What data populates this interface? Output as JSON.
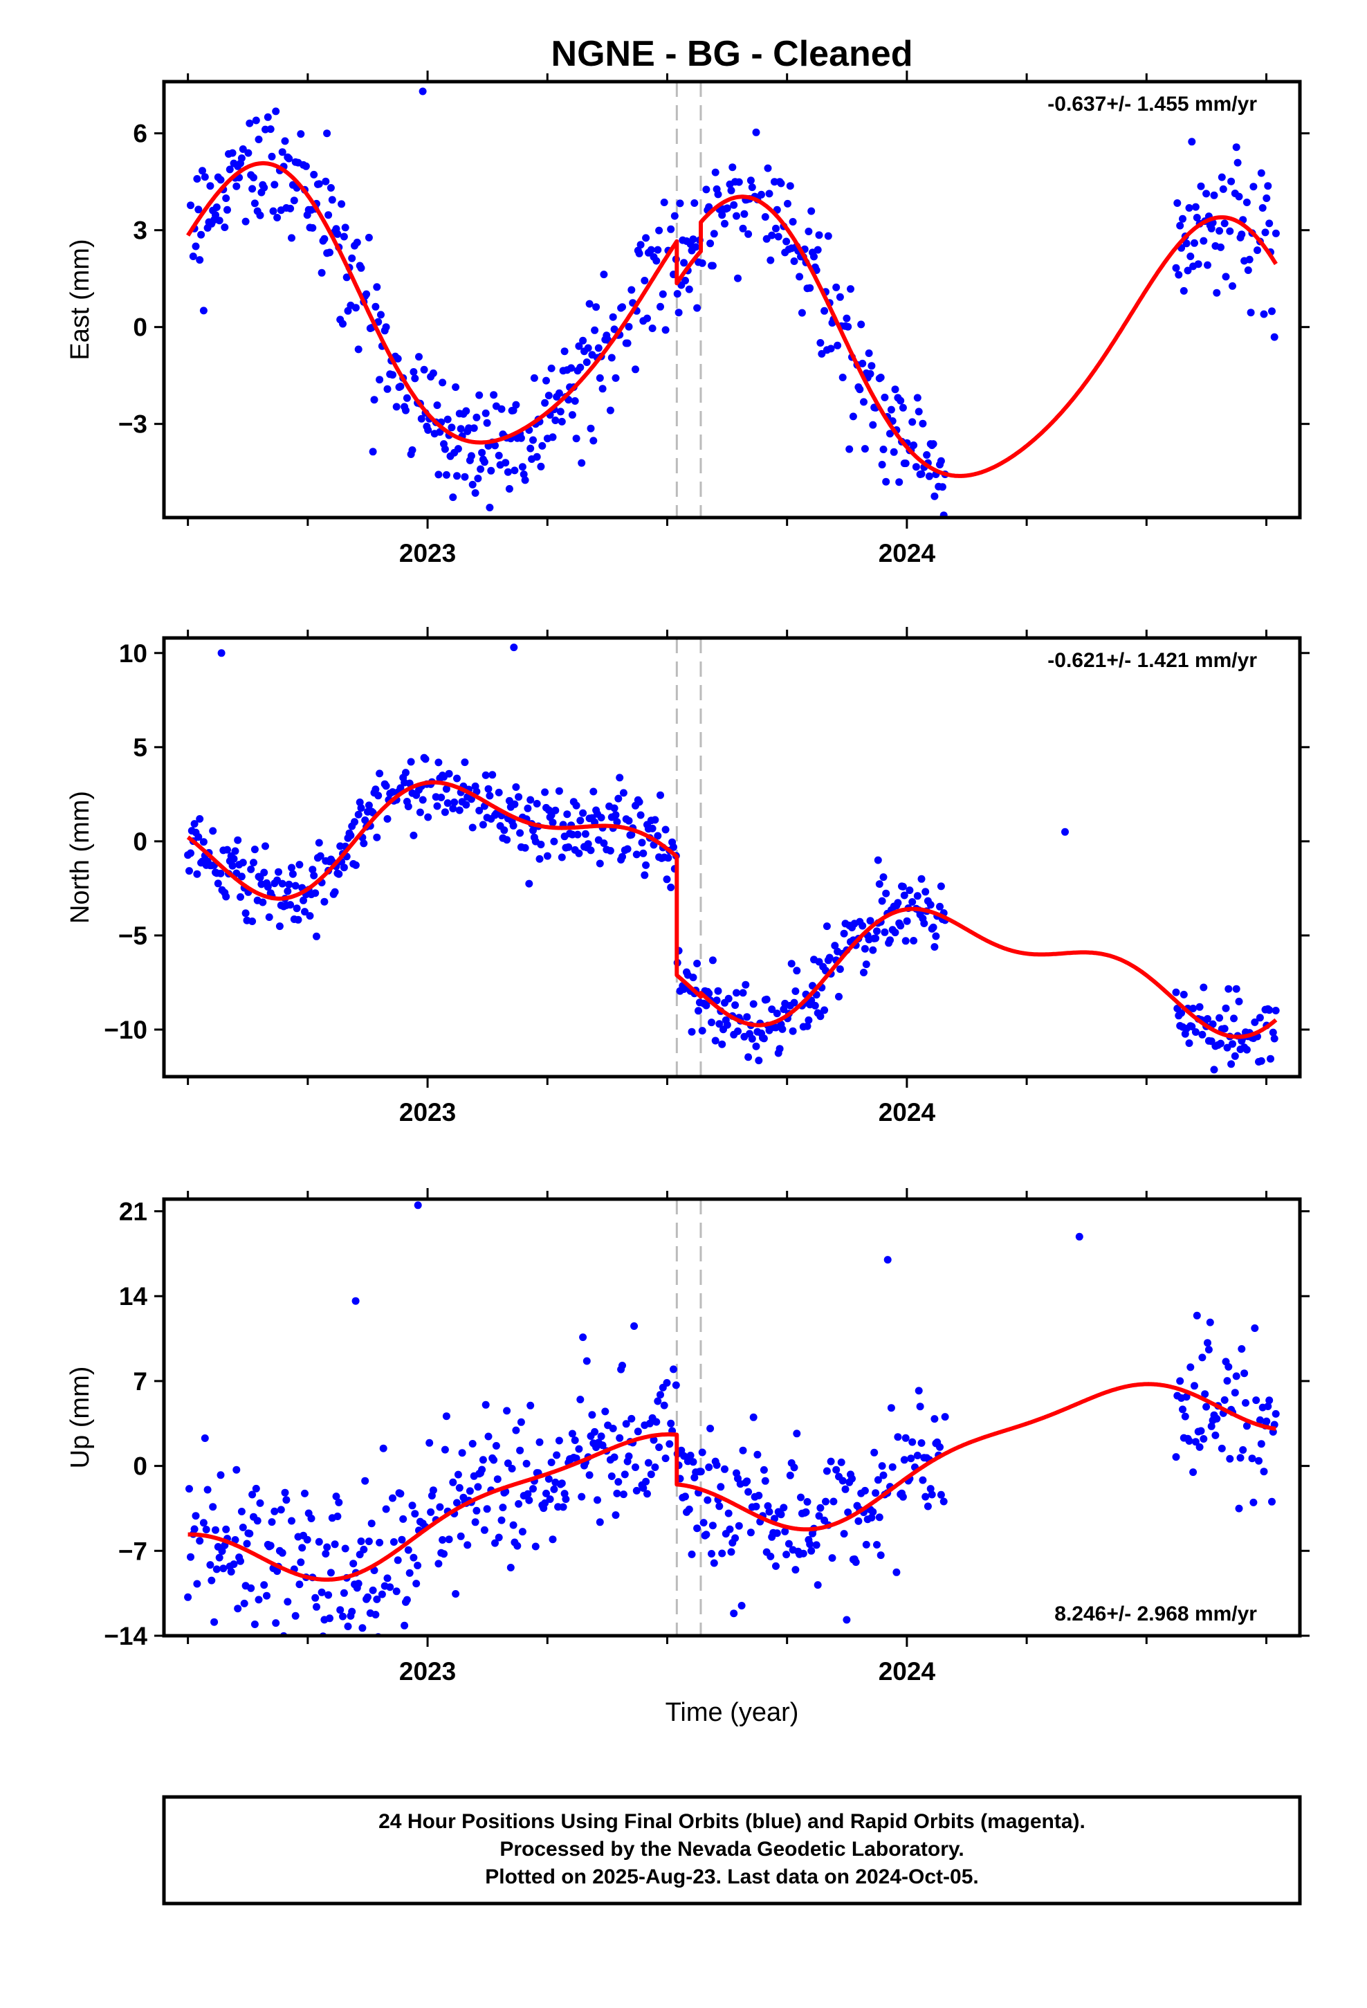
{
  "title": "NGNE  - BG - Cleaned",
  "xlabel": "Time (year)",
  "caption": {
    "line1": "24 Hour Positions Using Final Orbits (blue) and Rapid Orbits (magenta).",
    "line2": "Processed by the Nevada Geodetic Laboratory.",
    "line3": "Plotted on 2025-Aug-23. Last data on 2024-Oct-05."
  },
  "colors": {
    "points": "#0000ff",
    "model": "#ff0000",
    "breaks": "#bbbbbb",
    "frame": "#000000"
  },
  "chart_data": [
    {
      "type": "scatter",
      "panel": "east",
      "ylabel": "East (mm)",
      "rate": "-0.637+/- 1.455 mm/yr",
      "rate_position": "top-right",
      "xlim": [
        2022.45,
        2024.82
      ],
      "ylim": [
        -5.9,
        7.6
      ],
      "yticks": [
        -3,
        0,
        3,
        6
      ],
      "ytick_labels": [
        "−3",
        "0",
        "3",
        "6"
      ],
      "xticks": [
        2023,
        2024
      ],
      "xtick_labels": [
        "2023",
        "2024"
      ],
      "breaks": [
        2023.52,
        2023.57
      ],
      "data_start": 2022.5,
      "data_end": 2024.77,
      "gaps": [
        [
          2024.08,
          2024.56
        ]
      ],
      "model": {
        "offset": 0.0,
        "trend": -0.637,
        "annual_cos": -2.6,
        "annual_sin": -3.2,
        "semi_cos": -0.4,
        "semi_sin": 0.3,
        "noise": 1.0,
        "steps": [
          [
            2023.52,
            -1.3
          ],
          [
            2023.57,
            0.9
          ]
        ],
        "outliers": [
          [
            2022.99,
            7.3
          ],
          [
            2022.79,
            6.0
          ],
          [
            2024.77,
            2.9
          ]
        ]
      },
      "grid": false,
      "series": []
    },
    {
      "type": "scatter",
      "panel": "north",
      "ylabel": "North (mm)",
      "rate": "-0.621+/- 1.421 mm/yr",
      "rate_position": "top-right",
      "xlim": [
        2022.45,
        2024.82
      ],
      "ylim": [
        -12.5,
        10.8
      ],
      "yticks": [
        -10,
        -5,
        0,
        5,
        10
      ],
      "ytick_labels": [
        "−10",
        "−5",
        "0",
        "5",
        "10"
      ],
      "xticks": [
        2023,
        2024
      ],
      "xtick_labels": [
        "2023",
        "2024"
      ],
      "breaks": [
        2023.52,
        2023.57
      ],
      "data_start": 2022.5,
      "data_end": 2024.77,
      "gaps": [
        [
          2024.08,
          2024.56
        ]
      ],
      "model": {
        "offset": 0.0,
        "trend": -0.621,
        "annual_cos": 1.6,
        "annual_sin": 1.8,
        "semi_cos": 1.2,
        "semi_sin": -0.6,
        "noise": 1.0,
        "steps": [
          [
            2023.52,
            -6.3
          ],
          [
            2023.57,
            0.2
          ]
        ],
        "outliers": [
          [
            2022.57,
            10.0
          ],
          [
            2023.18,
            10.3
          ],
          [
            2024.33,
            0.5
          ],
          [
            2023.94,
            -1.0
          ]
        ]
      },
      "grid": false,
      "series": []
    },
    {
      "type": "scatter",
      "panel": "up",
      "ylabel": "Up (mm)",
      "rate": "8.246+/- 2.968 mm/yr",
      "rate_position": "bottom-right",
      "xlim": [
        2022.45,
        2024.82
      ],
      "ylim": [
        -14,
        22
      ],
      "yticks": [
        -14,
        -7,
        0,
        7,
        14,
        21
      ],
      "ytick_labels": [
        "−14",
        "−7",
        "0",
        "7",
        "14",
        "21"
      ],
      "xticks": [
        2023,
        2024
      ],
      "xtick_labels": [
        "2023",
        "2024"
      ],
      "breaks": [
        2023.52,
        2023.57
      ],
      "data_start": 2022.5,
      "data_end": 2024.77,
      "gaps": [
        [
          2024.08,
          2024.56
        ]
      ],
      "model": {
        "offset": 0.0,
        "trend": 8.246,
        "annual_cos": -1.8,
        "annual_sin": 2.2,
        "semi_cos": 0.8,
        "semi_sin": 0.5,
        "noise": 3.2,
        "steps": [
          [
            2023.52,
            -4.1
          ],
          [
            2023.57,
            0.0
          ]
        ],
        "outliers": [
          [
            2022.98,
            21.5
          ],
          [
            2022.85,
            13.6
          ],
          [
            2024.36,
            18.9
          ],
          [
            2023.96,
            17.0
          ]
        ]
      },
      "grid": false,
      "series": []
    }
  ]
}
